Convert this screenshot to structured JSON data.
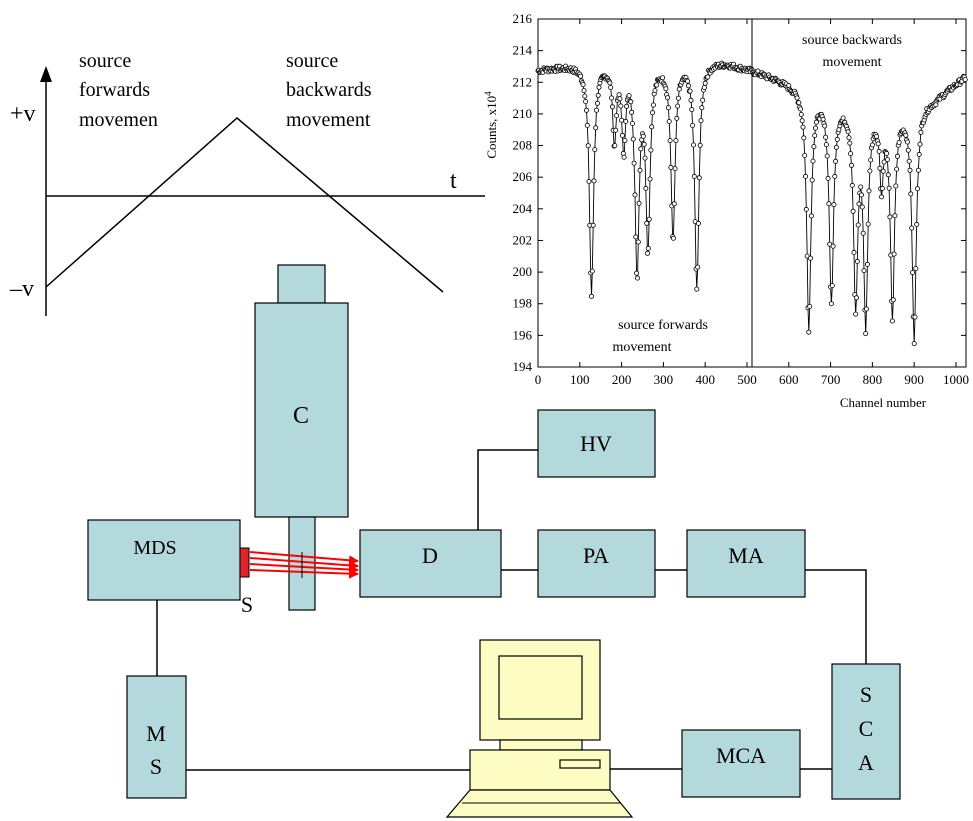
{
  "velocity_diagram": {
    "plus_v": "+v",
    "minus_v": "–v",
    "t": "t",
    "forward_text": [
      "source",
      "forwards",
      "movemen"
    ],
    "backward_text": [
      "source",
      "backwards",
      "movement"
    ]
  },
  "blocks": {
    "C": "C",
    "HV": "HV",
    "MDS": "MDS",
    "D": "D",
    "PA": "PA",
    "MA": "MA",
    "S": "S",
    "MS": [
      "M",
      "S"
    ],
    "SCA": [
      "S",
      "C",
      "A"
    ],
    "MCA": "MCA"
  },
  "colors": {
    "block_fill": "#b4d9dc",
    "computer_fill": "#fdfcc2",
    "beam": "#ff0000",
    "source": "#e0242c"
  },
  "chart_data": {
    "type": "scatter",
    "xlabel": "Channel number",
    "ylabel": "Counts, x10",
    "ylabel_exponent": "4",
    "xlim": [
      0,
      1024
    ],
    "ylim": [
      194,
      216
    ],
    "xticks": [
      0,
      100,
      200,
      300,
      400,
      500,
      600,
      700,
      800,
      900,
      1000
    ],
    "yticks": [
      194,
      196,
      198,
      200,
      202,
      204,
      206,
      208,
      210,
      212,
      214,
      216
    ],
    "divider_x": 512,
    "annotations": {
      "left": [
        "source forwards",
        "movement"
      ],
      "right": [
        "source backwards",
        "movement"
      ]
    },
    "baseline": [
      [
        0,
        212.8
      ],
      [
        80,
        213.1
      ],
      [
        150,
        213.3
      ],
      [
        250,
        213.3
      ],
      [
        380,
        213.4
      ],
      [
        450,
        213.3
      ],
      [
        512,
        212.8
      ],
      [
        570,
        212.3
      ],
      [
        640,
        211.6
      ],
      [
        700,
        211.1
      ],
      [
        760,
        210.8
      ],
      [
        820,
        210.6
      ],
      [
        880,
        210.5
      ],
      [
        950,
        211.0
      ],
      [
        1024,
        212.4
      ]
    ],
    "dips": [
      {
        "x": 128,
        "depth": 14.6,
        "width": 6
      },
      {
        "x": 183,
        "depth": 4.8,
        "width": 5
      },
      {
        "x": 205,
        "depth": 5.2,
        "width": 5
      },
      {
        "x": 237,
        "depth": 13.0,
        "width": 6
      },
      {
        "x": 263,
        "depth": 11.3,
        "width": 6
      },
      {
        "x": 323,
        "depth": 11.0,
        "width": 6
      },
      {
        "x": 380,
        "depth": 14.4,
        "width": 6
      },
      {
        "x": 648,
        "depth": 14.9,
        "width": 6
      },
      {
        "x": 702,
        "depth": 12.8,
        "width": 6
      },
      {
        "x": 760,
        "depth": 12.5,
        "width": 6
      },
      {
        "x": 784,
        "depth": 13.4,
        "width": 6
      },
      {
        "x": 822,
        "depth": 4.6,
        "width": 5
      },
      {
        "x": 848,
        "depth": 13.0,
        "width": 6
      },
      {
        "x": 900,
        "depth": 14.8,
        "width": 6
      }
    ]
  }
}
